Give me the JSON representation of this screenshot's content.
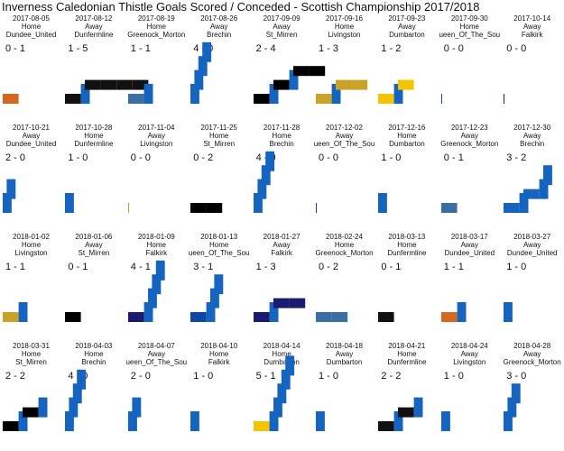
{
  "title": "Inverness Caledonian Thistle Goals Scored / Conceded - Scottish Championship 2017/2018",
  "chart_data": {
    "type": "heatmap",
    "title": "Inverness Caledonian Thistle Goals Scored / Conceded - Scottish Championship 2017/2018",
    "grid": false,
    "panel_layout": {
      "rows": 5,
      "columns": 9
    },
    "axes": "scored vs conceded, range 0-5",
    "colors": {
      "Dundee_United": "#d2691e",
      "Dunfermline": "#111111",
      "Greenock_Morton": "#3a6ea5",
      "Brechin": "#1565c0",
      "St_Mirren": "#000000",
      "Livingston": "#c9a227",
      "Dumbarton": "#f5c400",
      "Queen_Of_The_South": "#0d47a1",
      "Falkirk": "#1a1a6e",
      "Inverness": "#1565c0",
      "Inverness_alt": "#e41e2b"
    },
    "matches": [
      {
        "date": "2017-08-05",
        "venue": "Home",
        "opponent": "Dundee_United",
        "score": "0 - 1",
        "scored": 0,
        "conceded": 1,
        "color": "#d2691e"
      },
      {
        "date": "2017-08-12",
        "venue": "Away",
        "opponent": "Dunfermline",
        "score": "1 - 5",
        "scored": 1,
        "conceded": 5,
        "color": "#111111"
      },
      {
        "date": "2017-08-19",
        "venue": "Home",
        "opponent": "Greenock_Morton",
        "score": "1 - 1",
        "scored": 1,
        "conceded": 1,
        "color": "#3a6ea5"
      },
      {
        "date": "2017-08-26",
        "venue": "Away",
        "opponent": "Brechin",
        "score": "4 - 0",
        "scored": 4,
        "conceded": 0,
        "color": "#1565c0"
      },
      {
        "date": "2017-09-09",
        "venue": "Away",
        "opponent": "St_Mirren",
        "score": "2 - 4",
        "scored": 2,
        "conceded": 4,
        "color": "#000000"
      },
      {
        "date": "2017-09-16",
        "venue": "Home",
        "opponent": "Livingston",
        "score": "1 - 3",
        "scored": 1,
        "conceded": 3,
        "color": "#c9a227"
      },
      {
        "date": "2017-09-23",
        "venue": "Away",
        "opponent": "Dumbarton",
        "score": "1 - 2",
        "scored": 1,
        "conceded": 2,
        "color": "#f5c400"
      },
      {
        "date": "2017-09-30",
        "venue": "Home",
        "opponent": "ueen_Of_The_Sou",
        "score": "0 - 0",
        "scored": 0,
        "conceded": 0,
        "color": "#0d47a1"
      },
      {
        "date": "2017-10-14",
        "venue": "Away",
        "opponent": "Falkirk",
        "score": "0 - 0",
        "scored": 0,
        "conceded": 0,
        "color": "#1a1a6e"
      },
      {
        "date": "2017-10-21",
        "venue": "Away",
        "opponent": "Dundee_United",
        "score": "2 - 0",
        "scored": 2,
        "conceded": 0,
        "color": "#d2691e"
      },
      {
        "date": "2017-10-28",
        "venue": "Home",
        "opponent": "Dunfermline",
        "score": "1 - 0",
        "scored": 1,
        "conceded": 0,
        "color": "#111111"
      },
      {
        "date": "2017-11-04",
        "venue": "Away",
        "opponent": "Livingston",
        "score": "0 - 0",
        "scored": 0,
        "conceded": 0,
        "color": "#c9a227"
      },
      {
        "date": "2017-11-25",
        "venue": "Home",
        "opponent": "St_Mirren",
        "score": "0 - 2",
        "scored": 0,
        "conceded": 2,
        "color": "#000000"
      },
      {
        "date": "2017-11-28",
        "venue": "Home",
        "opponent": "Brechin",
        "score": "4 - 0",
        "scored": 4,
        "conceded": 0,
        "color": "#1565c0"
      },
      {
        "date": "2017-12-02",
        "venue": "Away",
        "opponent": "ueen_Of_The_Sou",
        "score": "0 - 0",
        "scored": 0,
        "conceded": 0,
        "color": "#0d47a1"
      },
      {
        "date": "2017-12-16",
        "venue": "Home",
        "opponent": "Dumbarton",
        "score": "1 - 0",
        "scored": 1,
        "conceded": 0,
        "color": "#f5c400"
      },
      {
        "date": "2017-12-23",
        "venue": "Away",
        "opponent": "Greenock_Morton",
        "score": "0 - 1",
        "scored": 0,
        "conceded": 1,
        "color": "#3a6ea5"
      },
      {
        "date": "2017-12-30",
        "venue": "Away",
        "opponent": "Brechin",
        "score": "3 - 2",
        "scored": 3,
        "conceded": 2,
        "color": "#1565c0"
      },
      {
        "date": "2018-01-02",
        "venue": "Home",
        "opponent": "Livingston",
        "score": "1 - 1",
        "scored": 1,
        "conceded": 1,
        "color": "#c9a227"
      },
      {
        "date": "2018-01-06",
        "venue": "Away",
        "opponent": "St_Mirren",
        "score": "0 - 1",
        "scored": 0,
        "conceded": 1,
        "color": "#000000"
      },
      {
        "date": "2018-01-09",
        "venue": "Home",
        "opponent": "Falkirk",
        "score": "4 - 1",
        "scored": 4,
        "conceded": 1,
        "color": "#1a1a6e"
      },
      {
        "date": "2018-01-13",
        "venue": "Home",
        "opponent": "ueen_Of_The_Sou",
        "score": "3 - 1",
        "scored": 3,
        "conceded": 1,
        "color": "#0d47a1"
      },
      {
        "date": "2018-01-27",
        "venue": "Away",
        "opponent": "Falkirk",
        "score": "1 - 3",
        "scored": 1,
        "conceded": 3,
        "color": "#1a1a6e"
      },
      {
        "date": "2018-02-24",
        "venue": "Home",
        "opponent": "Greenock_Morton",
        "score": "0 - 2",
        "scored": 0,
        "conceded": 2,
        "color": "#3a6ea5"
      },
      {
        "date": "2018-03-13",
        "venue": "Home",
        "opponent": "Dunfermline",
        "score": "0 - 1",
        "scored": 0,
        "conceded": 1,
        "color": "#111111"
      },
      {
        "date": "2018-03-17",
        "venue": "Away",
        "opponent": "Dundee_United",
        "score": "1 - 1",
        "scored": 1,
        "conceded": 1,
        "color": "#d2691e"
      },
      {
        "date": "2018-03-27",
        "venue": "Away",
        "opponent": "Dundee_United",
        "score": "1 - 0",
        "scored": 1,
        "conceded": 0,
        "color": "#d2691e"
      },
      {
        "date": "2018-03-31",
        "venue": "Home",
        "opponent": "St_Mirren",
        "score": "2 - 2",
        "scored": 2,
        "conceded": 2,
        "color": "#000000"
      },
      {
        "date": "2018-04-03",
        "venue": "Home",
        "opponent": "Brechin",
        "score": "4 - 0",
        "scored": 4,
        "conceded": 0,
        "color": "#1565c0"
      },
      {
        "date": "2018-04-07",
        "venue": "Away",
        "opponent": "ueen_Of_The_Sou",
        "score": "2 - 0",
        "scored": 2,
        "conceded": 0,
        "color": "#0d47a1"
      },
      {
        "date": "2018-04-10",
        "venue": "Home",
        "opponent": "Falkirk",
        "score": "1 - 0",
        "scored": 1,
        "conceded": 0,
        "color": "#1a1a6e"
      },
      {
        "date": "2018-04-14",
        "venue": "Home",
        "opponent": "Dumbarton",
        "score": "5 - 1",
        "scored": 5,
        "conceded": 1,
        "color": "#f5c400"
      },
      {
        "date": "2018-04-18",
        "venue": "Away",
        "opponent": "Dumbarton",
        "score": "1 - 0",
        "scored": 1,
        "conceded": 0,
        "color": "#f5c400"
      },
      {
        "date": "2018-04-21",
        "venue": "Home",
        "opponent": "Dunfermline",
        "score": "2 - 2",
        "scored": 2,
        "conceded": 2,
        "color": "#111111"
      },
      {
        "date": "2018-04-24",
        "venue": "Away",
        "opponent": "Livingston",
        "score": "1 - 0",
        "scored": 1,
        "conceded": 0,
        "color": "#c9a227"
      },
      {
        "date": "2018-04-28",
        "venue": "Away",
        "opponent": "Greenock_Morton",
        "score": "3 - 0",
        "scored": 3,
        "conceded": 0,
        "color": "#3a6ea5"
      }
    ]
  }
}
